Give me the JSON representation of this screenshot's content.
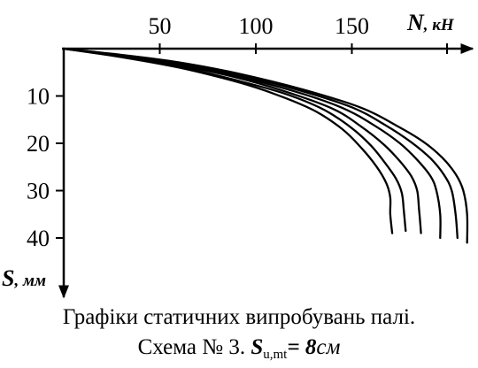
{
  "chart_data": {
    "type": "line",
    "x_axis": {
      "label_symbol": "N",
      "label_unit": "кН",
      "ticks": [
        50,
        100,
        150
      ],
      "range": [
        0,
        210
      ],
      "position": "top"
    },
    "y_axis": {
      "label_symbol": "S",
      "label_unit": "мм",
      "ticks": [
        10,
        20,
        30,
        40
      ],
      "range": [
        0,
        51
      ],
      "inverted": true
    },
    "grid": false,
    "series": [
      {
        "x": [
          0,
          30,
          60,
          90,
          110,
          130,
          145,
          155,
          163,
          168,
          170,
          170,
          171
        ],
        "y": [
          0,
          1.8,
          4,
          7,
          9.6,
          13,
          17,
          21,
          25,
          28.5,
          31.5,
          35,
          39
        ]
      },
      {
        "x": [
          0,
          30,
          60,
          90,
          115,
          135,
          150,
          160,
          167,
          173,
          176,
          177,
          178
        ],
        "y": [
          0,
          1.7,
          3.8,
          6.7,
          9.5,
          12.8,
          16.8,
          20.5,
          24,
          27.5,
          30.5,
          34,
          38.5
        ]
      },
      {
        "x": [
          0,
          30,
          60,
          90,
          115,
          140,
          155,
          167,
          175,
          181,
          184,
          185,
          186
        ],
        "y": [
          0,
          1.6,
          3.5,
          6.1,
          9,
          12.7,
          16.5,
          20.4,
          23.8,
          27,
          30,
          34,
          39
        ]
      },
      {
        "x": [
          0,
          30,
          60,
          90,
          120,
          145,
          162,
          175,
          184,
          191,
          194,
          196,
          196
        ],
        "y": [
          0,
          1.5,
          3.3,
          5.8,
          9,
          12.5,
          16.3,
          20,
          23.5,
          27,
          30,
          35,
          40
        ]
      },
      {
        "x": [
          0,
          30,
          60,
          90,
          120,
          150,
          168,
          181,
          191,
          198,
          202,
          204,
          205
        ],
        "y": [
          0,
          1.4,
          3.1,
          5.5,
          8.5,
          12.4,
          16.3,
          19.8,
          23.2,
          26.7,
          30,
          35,
          40
        ]
      },
      {
        "x": [
          0,
          30,
          60,
          90,
          125,
          155,
          173,
          187,
          197,
          204,
          208,
          210,
          210
        ],
        "y": [
          0,
          1.3,
          2.9,
          5.2,
          8.7,
          12.5,
          16.2,
          19.6,
          23,
          26.5,
          30,
          35,
          41
        ]
      }
    ]
  },
  "caption": {
    "line1": "Графіки статичних випробувань палі.",
    "line2_prefix": "Схема № 3. ",
    "line2_symbol": "S",
    "line2_subscript": "u,mt",
    "line2_equals": "= ",
    "line2_value": "8",
    "line2_unit": "см"
  }
}
